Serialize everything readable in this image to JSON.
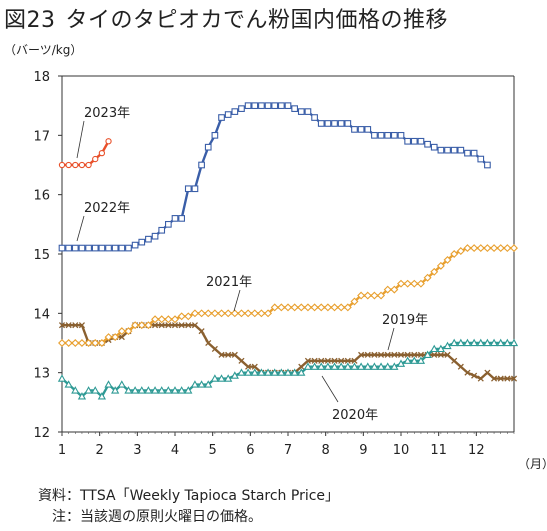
{
  "title": {
    "figure_number": "図23",
    "text": "タイのタピオカでん粉国内価格の推移"
  },
  "y_unit": "（バーツ/kg）",
  "x_unit": "（月）",
  "notes": {
    "source": "資料：TTSA「Weekly Tapioca Starch Price」",
    "note": "　注：当該週の原則火曜日の価格。"
  },
  "chart_data": {
    "type": "line",
    "title": "タイのタピオカでん粉国内価格の推移",
    "xlabel": "（月）",
    "ylabel": "（バーツ/kg）",
    "xlim": [
      1,
      13
    ],
    "ylim": [
      12,
      18
    ],
    "x_ticks": [
      "1",
      "2",
      "3",
      "4",
      "5",
      "6",
      "7",
      "8",
      "9",
      "10",
      "11",
      "12"
    ],
    "y_ticks": [
      "12",
      "13",
      "14",
      "15",
      "16",
      "17",
      "18"
    ],
    "grid": false,
    "series": [
      {
        "name": "2023年",
        "color": "#e8502a",
        "marker": "circle",
        "values": [
          16.5,
          16.5,
          16.5,
          16.5,
          16.5,
          16.6,
          16.7,
          16.9
        ]
      },
      {
        "name": "2022年",
        "color": "#3a5ea8",
        "marker": "square",
        "values": [
          15.1,
          15.1,
          15.1,
          15.1,
          15.1,
          15.1,
          15.1,
          15.1,
          15.1,
          15.1,
          15.1,
          15.15,
          15.2,
          15.25,
          15.3,
          15.4,
          15.5,
          15.6,
          15.6,
          16.1,
          16.1,
          16.5,
          16.8,
          17.0,
          17.3,
          17.35,
          17.4,
          17.45,
          17.5,
          17.5,
          17.5,
          17.5,
          17.5,
          17.5,
          17.5,
          17.45,
          17.4,
          17.4,
          17.3,
          17.2,
          17.2,
          17.2,
          17.2,
          17.2,
          17.1,
          17.1,
          17.1,
          17.0,
          17.0,
          17.0,
          17.0,
          17.0,
          16.9,
          16.9,
          16.9,
          16.85,
          16.8,
          16.75,
          16.75,
          16.75,
          16.75,
          16.7,
          16.7,
          16.6,
          16.5
        ]
      },
      {
        "name": "2021年",
        "color": "#e8a030",
        "marker": "diamond",
        "values": [
          13.5,
          13.5,
          13.5,
          13.5,
          13.5,
          13.5,
          13.5,
          13.6,
          13.6,
          13.7,
          13.7,
          13.8,
          13.8,
          13.8,
          13.9,
          13.9,
          13.9,
          13.9,
          13.95,
          13.95,
          14.0,
          14.0,
          14.0,
          14.0,
          14.0,
          14.0,
          14.0,
          14.0,
          14.0,
          14.0,
          14.0,
          14.0,
          14.1,
          14.1,
          14.1,
          14.1,
          14.1,
          14.1,
          14.1,
          14.1,
          14.1,
          14.1,
          14.1,
          14.1,
          14.2,
          14.3,
          14.3,
          14.3,
          14.3,
          14.4,
          14.4,
          14.5,
          14.5,
          14.5,
          14.5,
          14.6,
          14.7,
          14.8,
          14.9,
          15.0,
          15.05,
          15.1,
          15.1,
          15.1,
          15.1,
          15.1,
          15.1,
          15.1,
          15.1
        ]
      },
      {
        "name": "2019年",
        "color": "#8a6030",
        "marker": "x",
        "values": [
          13.8,
          13.8,
          13.8,
          13.8,
          13.5,
          13.5,
          13.5,
          13.55,
          13.6,
          13.6,
          13.7,
          13.8,
          13.8,
          13.8,
          13.8,
          13.8,
          13.8,
          13.8,
          13.8,
          13.8,
          13.8,
          13.7,
          13.5,
          13.4,
          13.3,
          13.3,
          13.3,
          13.2,
          13.1,
          13.1,
          13.0,
          13.0,
          13.0,
          13.0,
          13.0,
          13.0,
          13.1,
          13.2,
          13.2,
          13.2,
          13.2,
          13.2,
          13.2,
          13.2,
          13.2,
          13.3,
          13.3,
          13.3,
          13.3,
          13.3,
          13.3,
          13.3,
          13.3,
          13.3,
          13.3,
          13.3,
          13.3,
          13.3,
          13.3,
          13.2,
          13.1,
          13.0,
          12.95,
          12.9,
          13.0,
          12.9,
          12.9,
          12.9,
          12.9
        ]
      },
      {
        "name": "2020年",
        "color": "#2e9a95",
        "marker": "triangle",
        "values": [
          12.9,
          12.8,
          12.7,
          12.6,
          12.7,
          12.7,
          12.6,
          12.8,
          12.7,
          12.8,
          12.7,
          12.7,
          12.7,
          12.7,
          12.7,
          12.7,
          12.7,
          12.7,
          12.7,
          12.7,
          12.8,
          12.8,
          12.8,
          12.9,
          12.9,
          12.9,
          12.95,
          13.0,
          13.0,
          13.0,
          13.0,
          13.0,
          13.0,
          13.0,
          13.0,
          13.0,
          13.0,
          13.1,
          13.1,
          13.1,
          13.1,
          13.1,
          13.1,
          13.1,
          13.1,
          13.1,
          13.1,
          13.1,
          13.1,
          13.1,
          13.1,
          13.15,
          13.2,
          13.2,
          13.2,
          13.3,
          13.4,
          13.4,
          13.45,
          13.5,
          13.5,
          13.5,
          13.5,
          13.5,
          13.5,
          13.5,
          13.5,
          13.5,
          13.5
        ]
      }
    ],
    "annotations": [
      {
        "text": "2023年",
        "series": "2023年"
      },
      {
        "text": "2022年",
        "series": "2022年"
      },
      {
        "text": "2021年",
        "series": "2021年"
      },
      {
        "text": "2019年",
        "series": "2019年"
      },
      {
        "text": "2020年",
        "series": "2020年"
      }
    ]
  }
}
